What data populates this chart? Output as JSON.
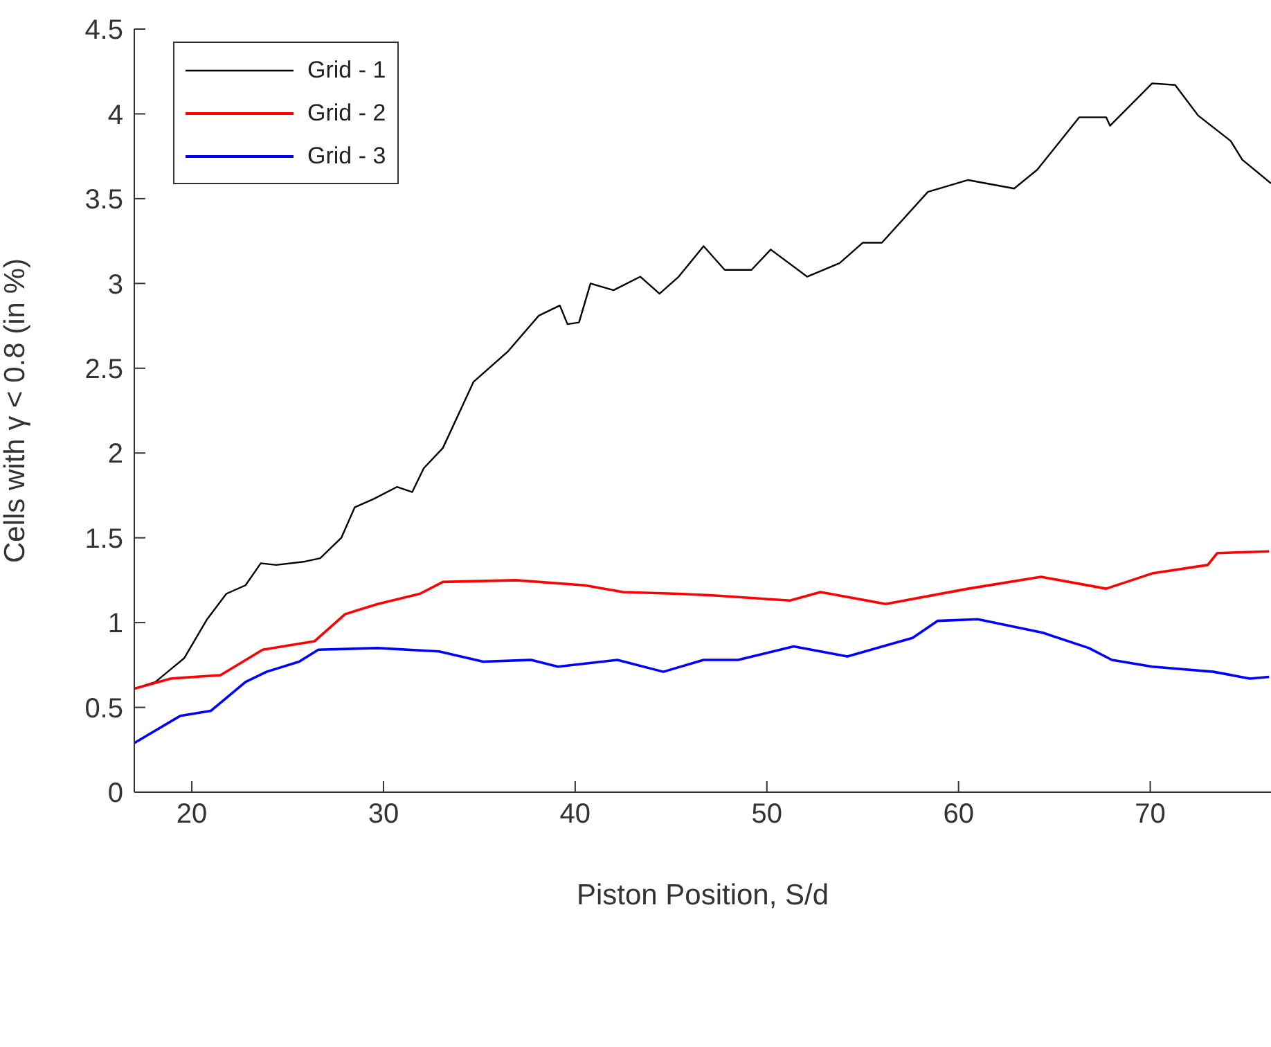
{
  "chart_data": {
    "type": "line",
    "xlabel": "Piston Position, S/d",
    "ylabel": "Cells with γ < 0.8 (in %)",
    "xlim": [
      17,
      76.3
    ],
    "xticks": [
      20,
      30,
      40,
      50,
      60,
      70
    ],
    "ylim": [
      0,
      4.5
    ],
    "yticks": [
      0,
      0.5,
      1,
      1.5,
      2,
      2.5,
      3,
      3.5,
      4,
      4.5
    ],
    "grid": false,
    "legend": "top left",
    "marker": "none",
    "line_style": "solid",
    "series": [
      {
        "name": "Grid - 1",
        "color": "#000000",
        "x": [
          17,
          18.1,
          19.6,
          20.8,
          21.8,
          22.8,
          23.6,
          24.4,
          25.9,
          26.7,
          27.8,
          28.5,
          29.5,
          30.7,
          31.5,
          32.1,
          33.1,
          34.7,
          36.5,
          38.1,
          39.2,
          39.6,
          40.2,
          40.8,
          42.0,
          43.4,
          44.4,
          45.4,
          46.7,
          47.8,
          49.2,
          50.2,
          52.1,
          53.8,
          55.0,
          56.0,
          58.4,
          60.5,
          62.9,
          64.1,
          66.3,
          67.7,
          67.9,
          70.1,
          71.3,
          72.5,
          74.2,
          74.8,
          76.3
        ],
        "values": [
          0.61,
          0.65,
          0.79,
          1.02,
          1.17,
          1.22,
          1.35,
          1.34,
          1.36,
          1.38,
          1.5,
          1.68,
          1.73,
          1.8,
          1.77,
          1.91,
          2.03,
          2.42,
          2.6,
          2.81,
          2.87,
          2.76,
          2.77,
          3.0,
          2.96,
          3.04,
          2.94,
          3.04,
          3.22,
          3.08,
          3.08,
          3.2,
          3.04,
          3.12,
          3.24,
          3.24,
          3.54,
          3.61,
          3.56,
          3.67,
          3.98,
          3.98,
          3.93,
          4.18,
          4.17,
          3.99,
          3.84,
          3.73,
          3.59
        ]
      },
      {
        "name": "Grid - 2",
        "color": "#ff0000",
        "x": [
          17,
          18.9,
          21.5,
          23.7,
          26.4,
          28.0,
          29.7,
          31.9,
          33.1,
          36.9,
          40.5,
          42.5,
          45.4,
          47.3,
          51.2,
          52.8,
          56.2,
          60.5,
          64.3,
          67.7,
          70.1,
          73.0,
          73.5,
          76.2
        ],
        "values": [
          0.61,
          0.67,
          0.69,
          0.84,
          0.89,
          1.05,
          1.11,
          1.17,
          1.24,
          1.25,
          1.22,
          1.18,
          1.17,
          1.16,
          1.13,
          1.18,
          1.11,
          1.2,
          1.27,
          1.2,
          1.29,
          1.34,
          1.41,
          1.42
        ]
      },
      {
        "name": "Grid - 3",
        "color": "#0000ff",
        "x": [
          17,
          19.4,
          21.0,
          22.8,
          23.9,
          25.6,
          26.6,
          29.7,
          32.9,
          35.2,
          37.7,
          39.1,
          42.2,
          44.6,
          46.7,
          48.5,
          51.4,
          54.2,
          57.6,
          58.9,
          61.0,
          64.4,
          66.8,
          68.0,
          70.1,
          73.3,
          75.2,
          76.2
        ],
        "values": [
          0.29,
          0.45,
          0.48,
          0.65,
          0.71,
          0.77,
          0.84,
          0.85,
          0.83,
          0.77,
          0.78,
          0.74,
          0.78,
          0.71,
          0.78,
          0.78,
          0.86,
          0.8,
          0.91,
          1.01,
          1.02,
          0.94,
          0.85,
          0.78,
          0.74,
          0.71,
          0.67,
          0.68
        ]
      }
    ]
  }
}
